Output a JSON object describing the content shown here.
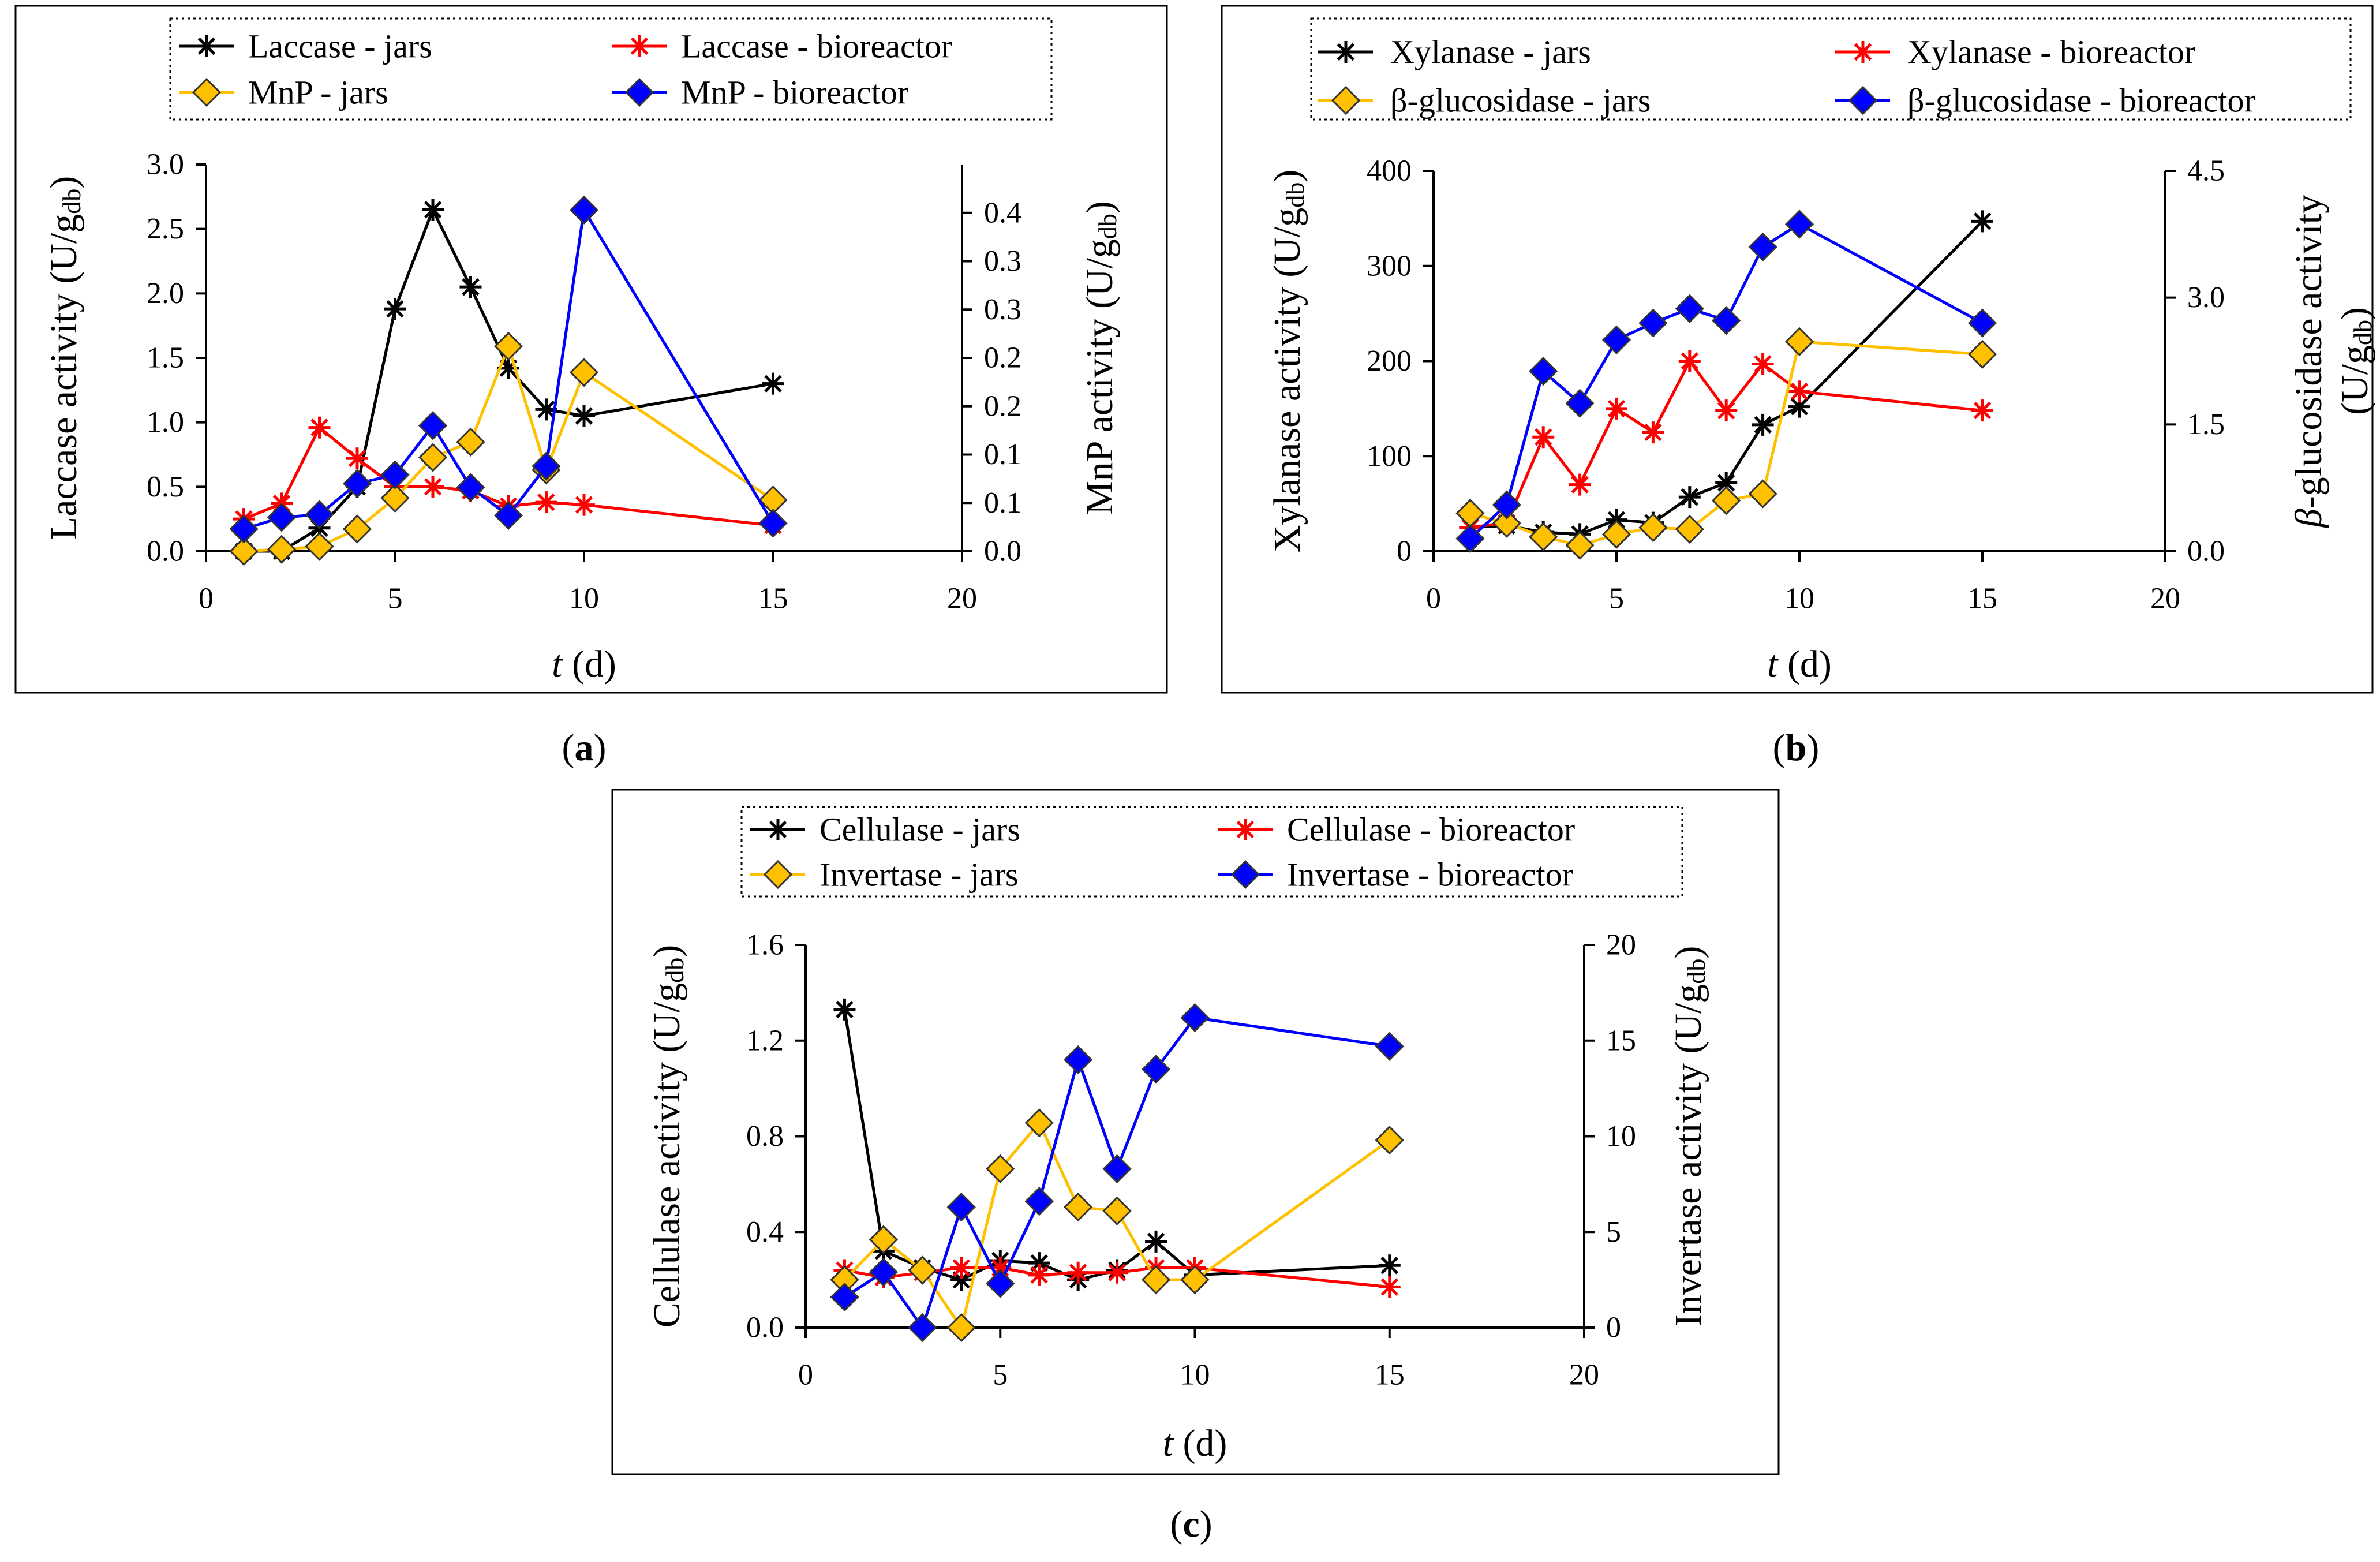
{
  "figure": {
    "label_left": "(",
    "label_right": ")"
  },
  "chart_data": [
    {
      "id": "a",
      "type": "line",
      "panel_label": "a",
      "xlabel_italic": "t",
      "xlabel_unit": " (d)",
      "ylabel_main": "Laccase activity (U/g",
      "ylabel_sub": "db",
      "ylabel_close": ")",
      "y2label_main": "MnP activity (U/g",
      "y2label_sub": "db",
      "y2label_close": ")",
      "xlim": [
        0,
        20
      ],
      "xticks": [
        "0",
        "5",
        "10",
        "15",
        "20"
      ],
      "xtick_values": [
        0,
        5,
        10,
        15,
        20
      ],
      "ylim": [
        0,
        3.0
      ],
      "yticks": [
        "0.0",
        "0.5",
        "1.0",
        "1.5",
        "2.0",
        "2.5",
        "3.0"
      ],
      "ytick_values": [
        0,
        0.5,
        1.0,
        1.5,
        2.0,
        2.5,
        3.0
      ],
      "y2lim": [
        0,
        0.4
      ],
      "y2ticks": [
        "0.0",
        "0.1",
        "0.1",
        "0.2",
        "0.2",
        "0.3",
        "0.3",
        "0.4"
      ],
      "y2tick_values": [
        0,
        0.05,
        0.1,
        0.15,
        0.2,
        0.25,
        0.3,
        0.35
      ],
      "legend": [
        "Laccase - jars",
        "Laccase - bioreactor",
        "MnP - jars",
        "MnP - bioreactor"
      ],
      "series": [
        {
          "name": "Laccase - jars",
          "axis": "y1",
          "marker": "star",
          "color": "#000000",
          "x": [
            1,
            2,
            3,
            4,
            5,
            6,
            7,
            8,
            9,
            10,
            15
          ],
          "values": [
            0.0,
            0.0,
            0.18,
            0.5,
            1.88,
            2.65,
            2.05,
            1.42,
            1.1,
            1.05,
            1.3
          ]
        },
        {
          "name": "Laccase - bioreactor",
          "axis": "y1",
          "marker": "star",
          "color": "#ff0000",
          "x": [
            1,
            2,
            3,
            4,
            5,
            6,
            7,
            8,
            9,
            10,
            15
          ],
          "values": [
            0.25,
            0.37,
            0.96,
            0.72,
            0.5,
            0.5,
            0.47,
            0.35,
            0.38,
            0.36,
            0.2
          ]
        },
        {
          "name": "MnP - jars",
          "axis": "y2",
          "marker": "diamond",
          "color": "#ffc000",
          "x": [
            1,
            2,
            3,
            4,
            5,
            6,
            7,
            8,
            9,
            10,
            15
          ],
          "values": [
            0.0,
            0.002,
            0.005,
            0.023,
            0.055,
            0.097,
            0.113,
            0.212,
            0.084,
            0.185,
            0.053
          ]
        },
        {
          "name": "MnP - bioreactor",
          "axis": "y2",
          "marker": "diamond",
          "color": "#0000ff",
          "x": [
            1,
            2,
            3,
            4,
            5,
            6,
            7,
            8,
            9,
            10,
            15
          ],
          "values": [
            0.023,
            0.035,
            0.038,
            0.07,
            0.079,
            0.13,
            0.066,
            0.037,
            0.088,
            0.353,
            0.029
          ]
        }
      ]
    },
    {
      "id": "b",
      "type": "line",
      "panel_label": "b",
      "xlabel_italic": "t",
      "xlabel_unit": " (d)",
      "ylabel_main": "Xylanase activity (U/g",
      "ylabel_sub": "db",
      "ylabel_close": ")",
      "y2label_line1_italic": "β",
      "y2label_line1": "-glucosidase activity",
      "y2label_line2_main": "(U/g",
      "y2label_line2_sub": "db",
      "y2label_line2_close": ")",
      "xlim": [
        0,
        20
      ],
      "xticks": [
        "0",
        "5",
        "10",
        "15",
        "20"
      ],
      "xtick_values": [
        0,
        5,
        10,
        15,
        20
      ],
      "ylim": [
        0,
        400
      ],
      "yticks": [
        "0",
        "100",
        "200",
        "300",
        "400"
      ],
      "ytick_values": [
        0,
        100,
        200,
        300,
        400
      ],
      "y2lim": [
        0,
        4.5
      ],
      "y2ticks": [
        "0.0",
        "1.5",
        "3.0",
        "4.5"
      ],
      "y2tick_values": [
        0,
        1.5,
        3.0,
        4.5
      ],
      "legend": [
        "Xylanase - jars",
        "Xylanase - bioreactor",
        "β-glucosidase - jars",
        "β-glucosidase - bioreactor"
      ],
      "series": [
        {
          "name": "Xylanase - jars",
          "axis": "y1",
          "marker": "star",
          "color": "#000000",
          "x": [
            1,
            2,
            3,
            4,
            5,
            6,
            7,
            8,
            9,
            10,
            15
          ],
          "values": [
            25,
            27,
            20,
            18,
            33,
            30,
            57,
            72,
            133,
            152,
            347
          ]
        },
        {
          "name": "Xylanase - bioreactor",
          "axis": "y1",
          "marker": "star",
          "color": "#ff0000",
          "x": [
            1,
            2,
            3,
            4,
            5,
            6,
            7,
            8,
            9,
            10,
            15
          ],
          "values": [
            25,
            30,
            120,
            70,
            150,
            125,
            200,
            148,
            197,
            168,
            148
          ]
        },
        {
          "name": "β-glucosidase - jars",
          "axis": "y2",
          "marker": "diamond",
          "color": "#ffc000",
          "x": [
            1,
            2,
            3,
            4,
            5,
            6,
            7,
            8,
            9,
            10,
            15
          ],
          "values": [
            0.45,
            0.33,
            0.17,
            0.07,
            0.2,
            0.28,
            0.26,
            0.6,
            0.68,
            2.48,
            2.33
          ]
        },
        {
          "name": "β-glucosidase - bioreactor",
          "axis": "y2",
          "marker": "diamond",
          "color": "#0000ff",
          "x": [
            1,
            2,
            3,
            4,
            5,
            6,
            7,
            8,
            9,
            10,
            15
          ],
          "values": [
            0.15,
            0.55,
            2.13,
            1.75,
            2.5,
            2.7,
            2.87,
            2.73,
            3.6,
            3.87,
            2.7
          ]
        }
      ]
    },
    {
      "id": "c",
      "type": "line",
      "panel_label": "c",
      "xlabel_italic": "t",
      "xlabel_unit": " (d)",
      "ylabel_main": "Cellulase activity (U/g",
      "ylabel_sub": "db",
      "ylabel_close": ")",
      "y2label_main": "Invertase activity (U/g",
      "y2label_sub": "db",
      "y2label_close": ")",
      "xlim": [
        0,
        20
      ],
      "xticks": [
        "0",
        "5",
        "10",
        "15",
        "20"
      ],
      "xtick_values": [
        0,
        5,
        10,
        15,
        20
      ],
      "ylim": [
        0,
        1.6
      ],
      "yticks": [
        "0.0",
        "0.4",
        "0.8",
        "1.2",
        "1.6"
      ],
      "ytick_values": [
        0,
        0.4,
        0.8,
        1.2,
        1.6
      ],
      "y2lim": [
        0,
        20
      ],
      "y2ticks": [
        "0",
        "5",
        "10",
        "15",
        "20"
      ],
      "y2tick_values": [
        0,
        5,
        10,
        15,
        20
      ],
      "legend": [
        "Cellulase - jars",
        "Cellulase - bioreactor",
        "Invertase - jars",
        "Invertase - bioreactor"
      ],
      "series": [
        {
          "name": "Cellulase - jars",
          "axis": "y1",
          "marker": "star",
          "color": "#000000",
          "x": [
            1,
            2,
            3,
            4,
            5,
            6,
            7,
            8,
            9,
            10,
            15
          ],
          "values": [
            1.33,
            0.32,
            0.25,
            0.2,
            0.28,
            0.27,
            0.2,
            0.24,
            0.36,
            0.22,
            0.26
          ]
        },
        {
          "name": "Cellulase - bioreactor",
          "axis": "y1",
          "marker": "star",
          "color": "#ff0000",
          "x": [
            1,
            2,
            3,
            4,
            5,
            6,
            7,
            8,
            9,
            10,
            15
          ],
          "values": [
            0.24,
            0.21,
            0.23,
            0.25,
            0.25,
            0.22,
            0.23,
            0.23,
            0.25,
            0.25,
            0.17
          ]
        },
        {
          "name": "Invertase - jars",
          "axis": "y2",
          "marker": "diamond",
          "color": "#ffc000",
          "x": [
            1,
            2,
            3,
            4,
            5,
            6,
            7,
            8,
            9,
            10,
            15
          ],
          "values": [
            2.5,
            4.6,
            3.0,
            0.0,
            8.3,
            10.7,
            6.3,
            6.1,
            2.5,
            2.5,
            9.8
          ]
        },
        {
          "name": "Invertase - bioreactor",
          "axis": "y2",
          "marker": "diamond",
          "color": "#0000ff",
          "x": [
            1,
            2,
            3,
            4,
            5,
            6,
            7,
            8,
            9,
            10,
            15
          ],
          "values": [
            1.6,
            2.9,
            0.0,
            6.3,
            2.3,
            6.6,
            14.0,
            8.3,
            13.5,
            16.2,
            14.7
          ]
        }
      ]
    }
  ]
}
